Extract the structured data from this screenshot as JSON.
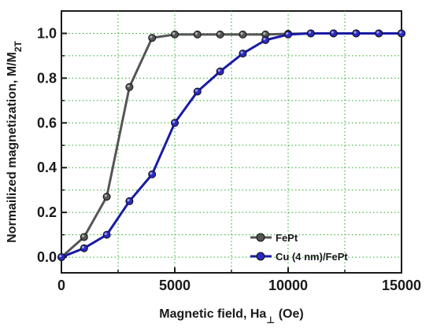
{
  "chart_data": {
    "type": "line",
    "title": "",
    "xlabel": "Magnetic field, Ha",
    "xlabel_symbol": "⊥",
    "xlabel_unit": " (Oe)",
    "ylabel": "Normailized magnetization, M/M",
    "ylabel_sub": "2T",
    "xlim": [
      0,
      15000
    ],
    "ylim": [
      -0.07,
      1.1
    ],
    "x_ticks": [
      0,
      5000,
      10000,
      15000
    ],
    "x_tick_labels": [
      "0",
      "5000",
      "10000",
      "15000"
    ],
    "y_ticks": [
      0.0,
      0.2,
      0.4,
      0.6,
      0.8,
      1.0
    ],
    "y_tick_labels": [
      "0.0",
      "0.2",
      "0.4",
      "0.6",
      "0.8",
      "1.0"
    ],
    "grid": true,
    "grid_color": "#22aa22",
    "legend_position": "lower-right",
    "series": [
      {
        "name": "FePt",
        "color": "#555555",
        "marker_color": "#555555",
        "x": [
          0,
          1000,
          2000,
          3000,
          4000,
          5000,
          6000,
          7000,
          8000,
          9000,
          10000,
          11000,
          12000,
          13000,
          14000,
          15000
        ],
        "y": [
          0.0,
          0.09,
          0.27,
          0.76,
          0.98,
          0.995,
          0.995,
          0.995,
          0.995,
          0.995,
          0.998,
          1.0,
          1.0,
          1.0,
          1.0,
          1.0
        ]
      },
      {
        "name": "Cu (4 nm)/FePt",
        "color": "#1a1aa6",
        "marker_color": "#2a2ac0",
        "x": [
          0,
          1000,
          2000,
          3000,
          4000,
          5000,
          6000,
          7000,
          8000,
          9000,
          10000,
          11000,
          12000,
          13000,
          14000,
          15000
        ],
        "y": [
          0.0,
          0.04,
          0.1,
          0.25,
          0.37,
          0.6,
          0.74,
          0.83,
          0.91,
          0.97,
          0.995,
          1.0,
          1.0,
          1.0,
          1.0,
          1.0
        ]
      }
    ]
  }
}
